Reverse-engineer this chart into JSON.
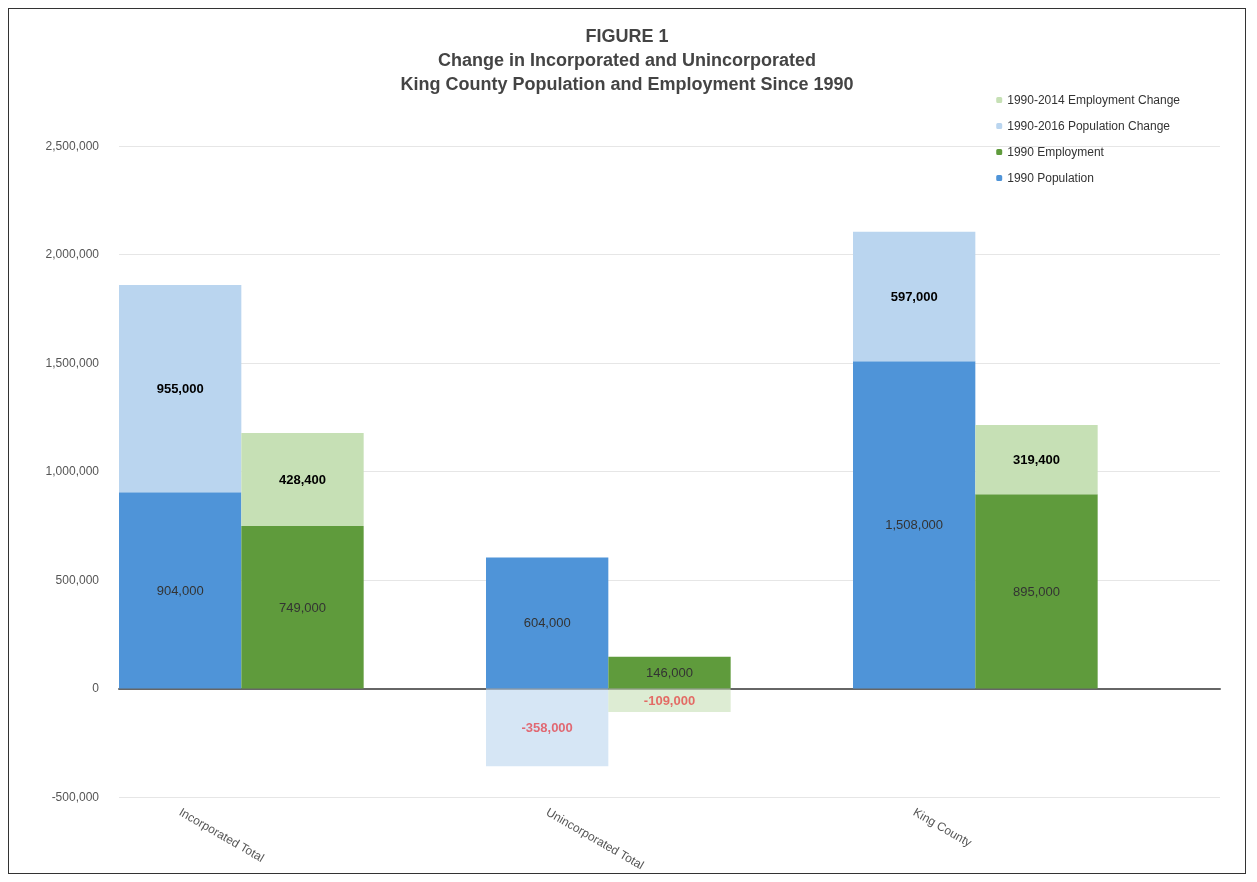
{
  "chart_data": {
    "type": "bar",
    "title": "FIGURE 1\nChange in Incorporated and Unincorporated\nKing County Population and Employment Since 1990",
    "categories": [
      "Incorporated Total",
      null,
      null,
      "Unincorporated Total",
      null,
      null,
      "King County",
      null,
      null
    ],
    "stacked": true,
    "series": [
      {
        "name": "1990 Population",
        "color": "#4f94d8",
        "values": [
          904000,
          null,
          null,
          604000,
          null,
          null,
          1508000,
          null,
          null
        ],
        "value_labels": [
          "904,000",
          null,
          null,
          "604,000",
          null,
          null,
          "1,508,000",
          null,
          null
        ]
      },
      {
        "name": "1990 Employment",
        "color": "#5f9b3c",
        "values": [
          null,
          749000,
          null,
          null,
          146000,
          null,
          null,
          895000,
          null
        ],
        "value_labels": [
          null,
          "749,000",
          null,
          null,
          "146,000",
          null,
          null,
          "895,000",
          null
        ]
      },
      {
        "name": "1990-2016 Population Change",
        "color": "#bad5ef",
        "values": [
          955000,
          null,
          null,
          -358000,
          null,
          null,
          597000,
          null,
          null
        ],
        "value_labels": [
          "955,000",
          null,
          null,
          "-358,000",
          null,
          null,
          "597,000",
          null,
          null
        ]
      },
      {
        "name": "1990-2014 Employment Change",
        "color": "#c6e0b5",
        "values": [
          null,
          428400,
          null,
          null,
          -109000,
          null,
          null,
          319400,
          null
        ],
        "value_labels": [
          null,
          "428,400",
          null,
          null,
          "-109,000",
          null,
          null,
          "319,400",
          null
        ]
      }
    ],
    "ylim": [
      -500000,
      2500000
    ],
    "yticks": [
      {
        "value": -500000,
        "label": "-500,000"
      },
      {
        "value": 0,
        "label": "0"
      },
      {
        "value": 500000,
        "label": "500,000"
      },
      {
        "value": 1000000,
        "label": "1,000,000"
      },
      {
        "value": 1500000,
        "label": "1,500,000"
      },
      {
        "value": 2000000,
        "label": "2,000,000"
      },
      {
        "value": 2500000,
        "label": "2,500,000"
      }
    ],
    "grid": "y",
    "legend": "top right"
  }
}
